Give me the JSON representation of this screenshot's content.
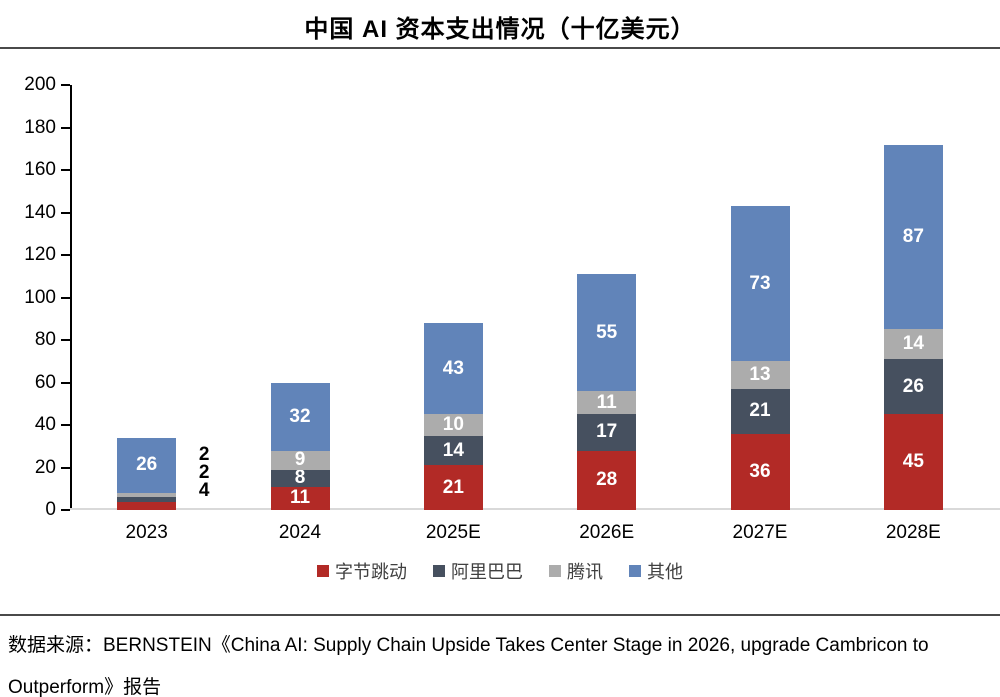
{
  "title": "中国 AI 资本支出情况（十亿美元）",
  "source": {
    "text": "数据来源：BERNSTEIN《China AI: Supply Chain Upside Takes Center Stage in 2026, upgrade Cambricon to Outperform》报告"
  },
  "chart_data": {
    "type": "bar",
    "stacked": true,
    "title": "中国 AI 资本支出情况（十亿美元）",
    "categories": [
      "2023",
      "2024",
      "2025E",
      "2026E",
      "2027E",
      "2028E"
    ],
    "series": [
      {
        "name": "字节跳动",
        "color": "#B22A26",
        "values": [
          4,
          11,
          21,
          28,
          36,
          45
        ]
      },
      {
        "name": "阿里巴巴",
        "color": "#46505F",
        "values": [
          2,
          8,
          14,
          17,
          21,
          26
        ]
      },
      {
        "name": "腾讯",
        "color": "#ACACAC",
        "values": [
          2,
          9,
          10,
          11,
          13,
          14
        ]
      },
      {
        "name": "其他",
        "color": "#6184B9",
        "values": [
          26,
          32,
          43,
          55,
          73,
          87
        ]
      }
    ],
    "totals": [
      34,
      60,
      88,
      111,
      143,
      172
    ],
    "outside_labels_2023": [
      2,
      2,
      4
    ],
    "ylim": [
      0,
      200
    ],
    "ytick_step": 20,
    "grid": false,
    "legend_position": "bottom",
    "value_label_color": "#ffffff",
    "outside_label_color": "#000000"
  }
}
